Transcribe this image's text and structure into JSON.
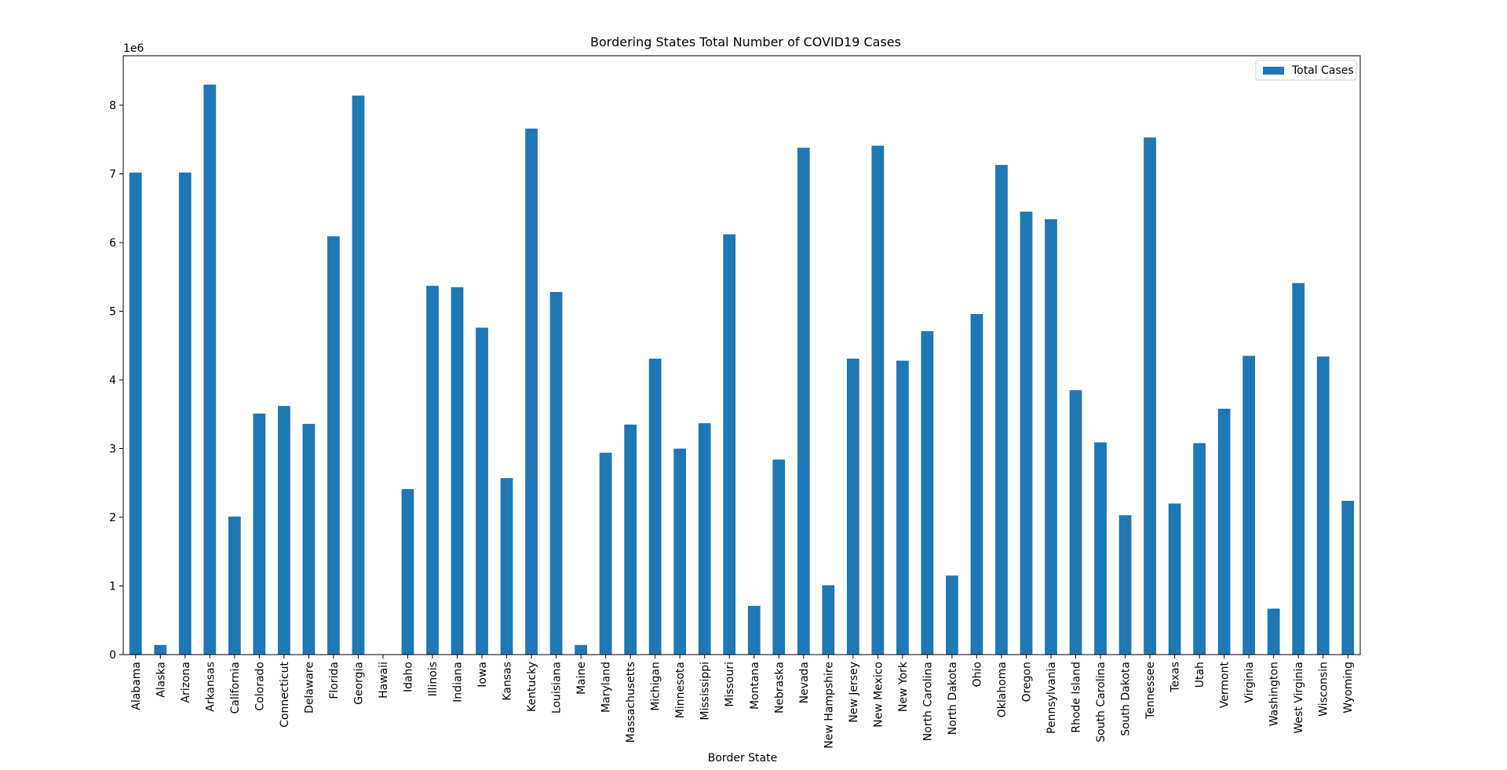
{
  "chart_data": {
    "type": "bar",
    "title": "Bordering States Total Number of COVID19 Cases",
    "xlabel": "Border State",
    "ylabel": "",
    "y_scale_label": "1e6",
    "ylim": [
      0,
      8.72
    ],
    "yticks": [
      0,
      1,
      2,
      3,
      4,
      5,
      6,
      7,
      8
    ],
    "legend_position": "top-right",
    "grid": false,
    "series": [
      {
        "name": "Total Cases",
        "color": "#1f77b4",
        "values": [
          7.02,
          0.14,
          7.02,
          8.3,
          2.01,
          3.51,
          3.62,
          3.36,
          6.09,
          8.14,
          0.0,
          2.41,
          5.37,
          5.35,
          4.76,
          2.57,
          7.66,
          5.28,
          0.14,
          2.94,
          3.35,
          4.31,
          3.0,
          3.37,
          6.12,
          0.71,
          2.84,
          7.38,
          1.01,
          4.31,
          7.41,
          4.28,
          4.71,
          1.15,
          4.96,
          7.13,
          6.45,
          6.34,
          3.85,
          3.09,
          2.03,
          7.53,
          2.2,
          3.08,
          3.58,
          4.35,
          0.67,
          5.41,
          4.34,
          2.24
        ]
      }
    ],
    "categories": [
      "Alabama",
      "Alaska",
      "Arizona",
      "Arkansas",
      "California",
      "Colorado",
      "Connecticut",
      "Delaware",
      "Florida",
      "Georgia",
      "Hawaii",
      "Idaho",
      "Illinois",
      "Indiana",
      "Iowa",
      "Kansas",
      "Kentucky",
      "Louisiana",
      "Maine",
      "Maryland",
      "Massachusetts",
      "Michigan",
      "Minnesota",
      "Mississippi",
      "Missouri",
      "Montana",
      "Nebraska",
      "Nevada",
      "New Hampshire",
      "New Jersey",
      "New Mexico",
      "New York",
      "North Carolina",
      "North Dakota",
      "Ohio",
      "Oklahoma",
      "Oregon",
      "Pennsylvania",
      "Rhode Island",
      "South Carolina",
      "South Dakota",
      "Tennessee",
      "Texas",
      "Utah",
      "Vermont",
      "Virginia",
      "Washington",
      "West Virginia",
      "Wisconsin",
      "Wyoming"
    ]
  }
}
